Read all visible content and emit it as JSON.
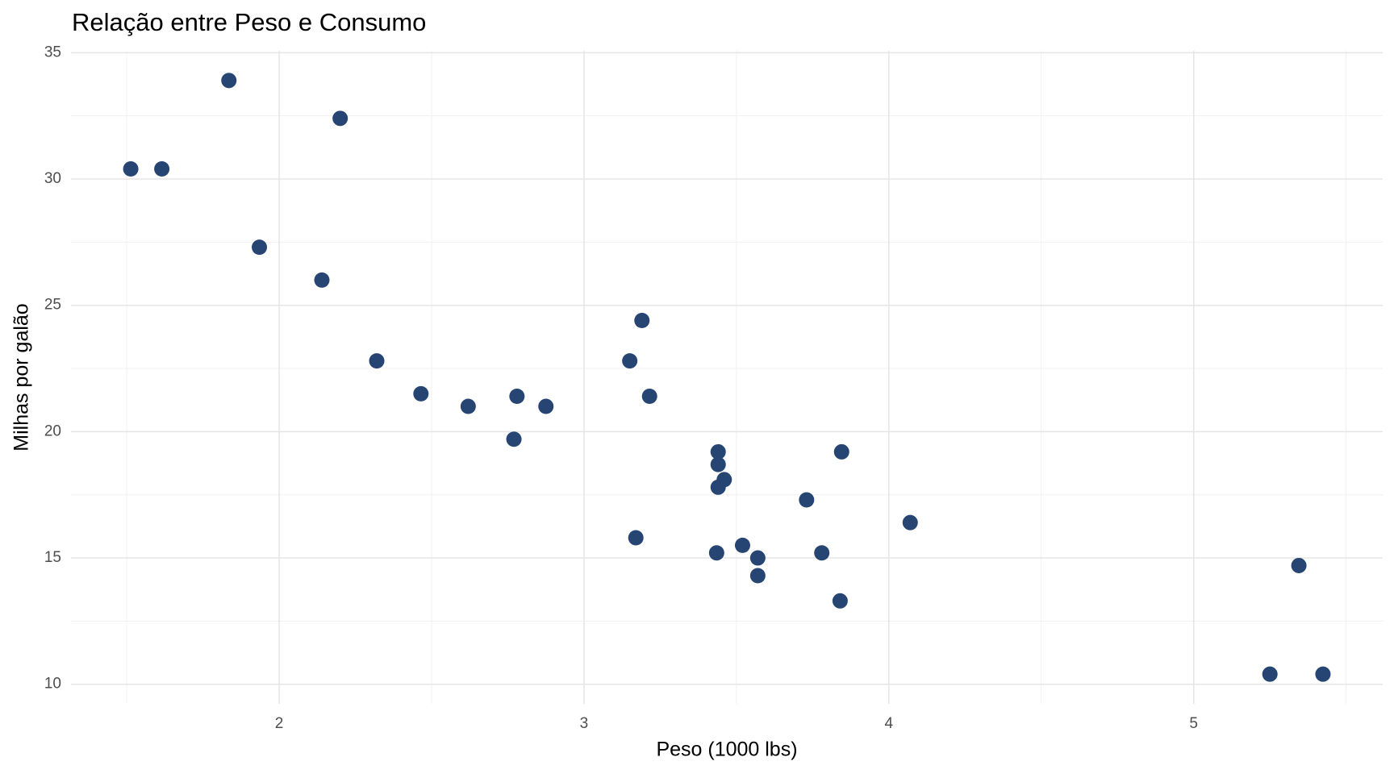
{
  "chart_data": {
    "type": "scatter",
    "title": "Relação entre Peso e Consumo",
    "x_label": "Peso (1000 lbs)",
    "y_label": "Milhas por galão",
    "color": "#264573",
    "x": [
      2.62,
      2.875,
      2.32,
      3.215,
      3.44,
      3.46,
      3.57,
      3.19,
      3.15,
      3.44,
      3.44,
      4.07,
      3.73,
      3.78,
      5.25,
      5.424,
      5.345,
      2.2,
      1.615,
      1.835,
      2.465,
      3.52,
      3.435,
      3.84,
      3.845,
      1.935,
      2.14,
      1.513,
      3.17,
      2.77,
      3.57,
      2.78
    ],
    "values": [
      21.0,
      21.0,
      22.8,
      21.4,
      18.7,
      18.1,
      14.3,
      24.4,
      22.8,
      19.2,
      17.8,
      16.4,
      17.3,
      15.2,
      10.4,
      10.4,
      14.7,
      32.4,
      30.4,
      33.9,
      21.5,
      15.5,
      15.2,
      13.3,
      19.2,
      27.3,
      26.0,
      30.4,
      15.8,
      19.7,
      15.0,
      21.4
    ],
    "xlim": [
      1.317,
      5.62
    ],
    "ylim": [
      9.225,
      35.075
    ],
    "xticks": [
      2,
      3,
      4,
      5
    ],
    "yticks": [
      10,
      15,
      20,
      25,
      30,
      35
    ],
    "x_minor_ticks": [
      1.5,
      2.5,
      3.5,
      4.5,
      5.5
    ],
    "y_minor_ticks": [
      12.5,
      17.5,
      22.5,
      27.5,
      32.5
    ],
    "grid": true
  }
}
